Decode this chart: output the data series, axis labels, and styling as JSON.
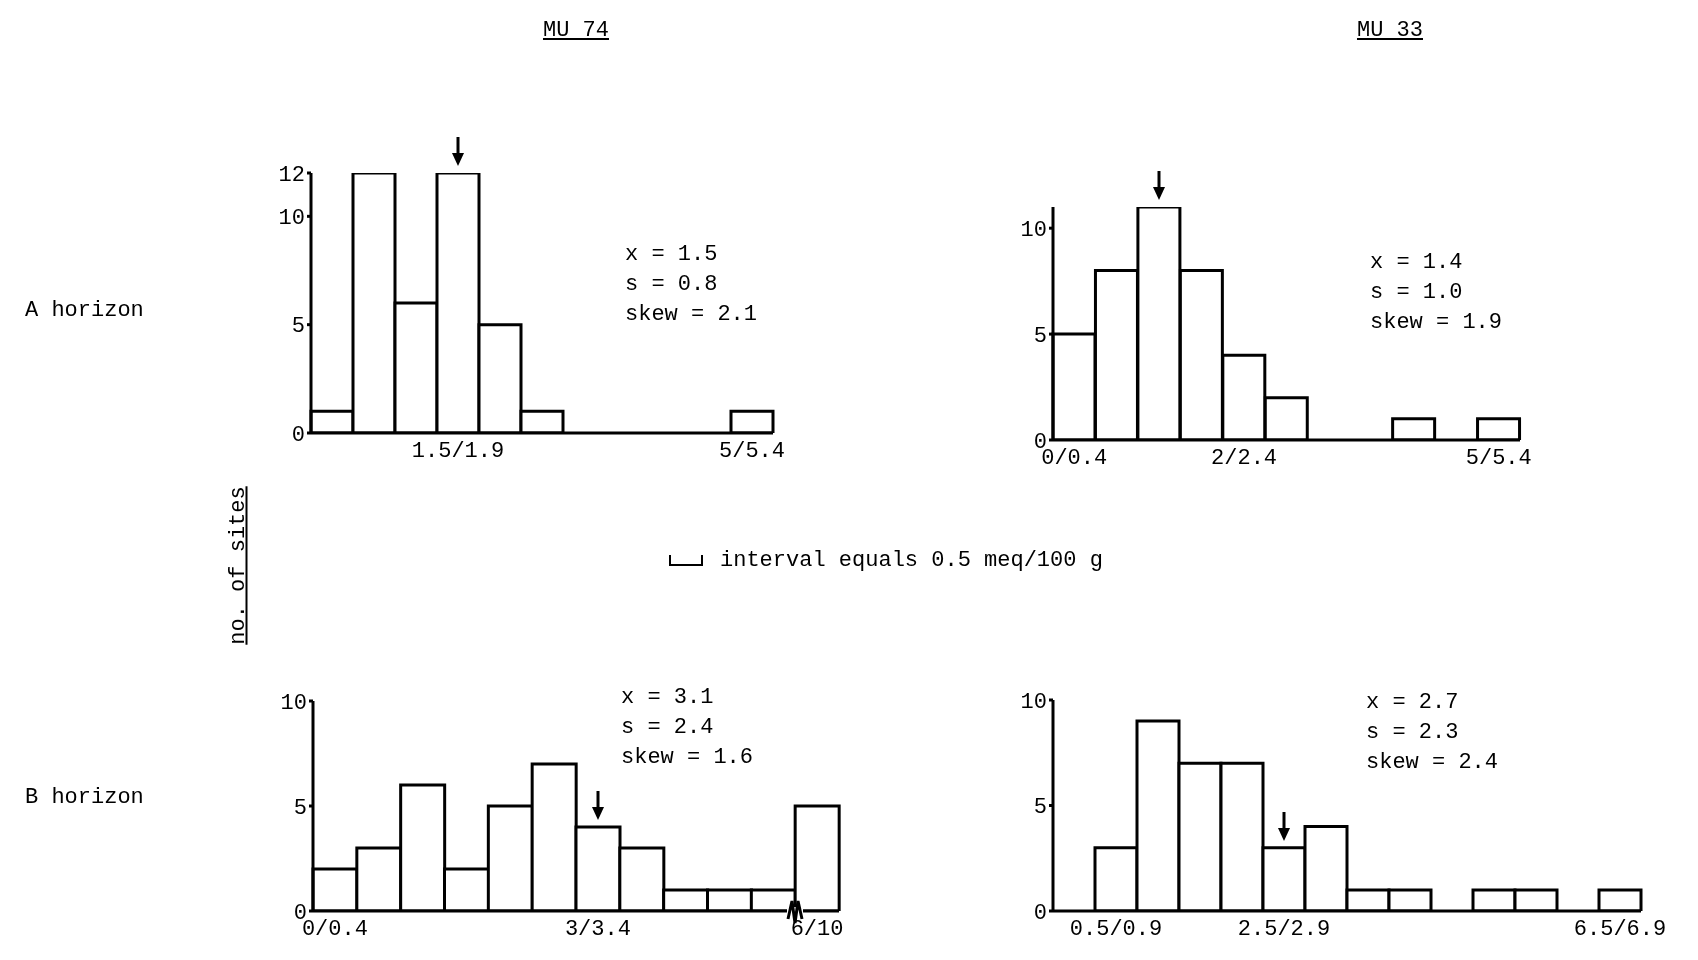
{
  "chart_data": [
    {
      "type": "bar",
      "title": "MU 74",
      "ylabel": "no. of sites",
      "categories": [
        null,
        null,
        null,
        "1.5/1.9",
        null,
        null,
        null,
        null,
        null,
        null,
        "5/5.4"
      ],
      "values": [
        1,
        12,
        6,
        12,
        5,
        1,
        0,
        0,
        0,
        0,
        1
      ],
      "color": "#000000",
      "ylim": [
        0,
        12
      ],
      "yticks": [
        0,
        5,
        10,
        12
      ],
      "grid": false,
      "annotations": [
        "x = 1.5",
        "s = 0.8",
        "skew = 2.1",
        "A horizon",
        "interval equals 0.5 meq/100 g"
      ]
    },
    {
      "type": "bar",
      "title": "MU 33",
      "categories": [
        "0/0.4",
        null,
        null,
        null,
        "2/2.4",
        null,
        null,
        null,
        null,
        null,
        "5/5.4"
      ],
      "values": [
        5,
        8,
        11,
        8,
        4,
        2,
        0,
        0,
        1,
        0,
        1
      ],
      "color": "#000000",
      "ylim": [
        0,
        11
      ],
      "yticks": [
        0,
        5,
        10
      ],
      "grid": false,
      "annotations": [
        "x = 1.4",
        "s = 1.0",
        "skew = 1.9"
      ]
    },
    {
      "type": "bar",
      "categories": [
        "0/0.4",
        null,
        null,
        null,
        null,
        null,
        "3/3.4",
        null,
        null,
        null,
        null,
        "6/10"
      ],
      "values": [
        2,
        3,
        6,
        2,
        5,
        7,
        4,
        3,
        1,
        1,
        1,
        5
      ],
      "color": "#000000",
      "ylim": [
        0,
        10
      ],
      "yticks": [
        0,
        5,
        10
      ],
      "grid": false,
      "annotations": [
        "x = 3.1",
        "s = 2.4",
        "skew = 1.6",
        "B horizon"
      ]
    },
    {
      "type": "bar",
      "categories": [
        null,
        "0.5/0.9",
        null,
        null,
        null,
        "2.5/2.9",
        null,
        null,
        null,
        null,
        null,
        null,
        null,
        "6.5/6.9"
      ],
      "values": [
        0,
        3,
        9,
        7,
        7,
        3,
        4,
        1,
        1,
        0,
        1,
        1,
        0,
        1
      ],
      "color": "#000000",
      "ylim": [
        0,
        10
      ],
      "yticks": [
        0,
        5,
        10
      ],
      "grid": false,
      "annotations": [
        "x = 2.7",
        "s = 2.3",
        "skew = 2.4"
      ]
    }
  ]
}
